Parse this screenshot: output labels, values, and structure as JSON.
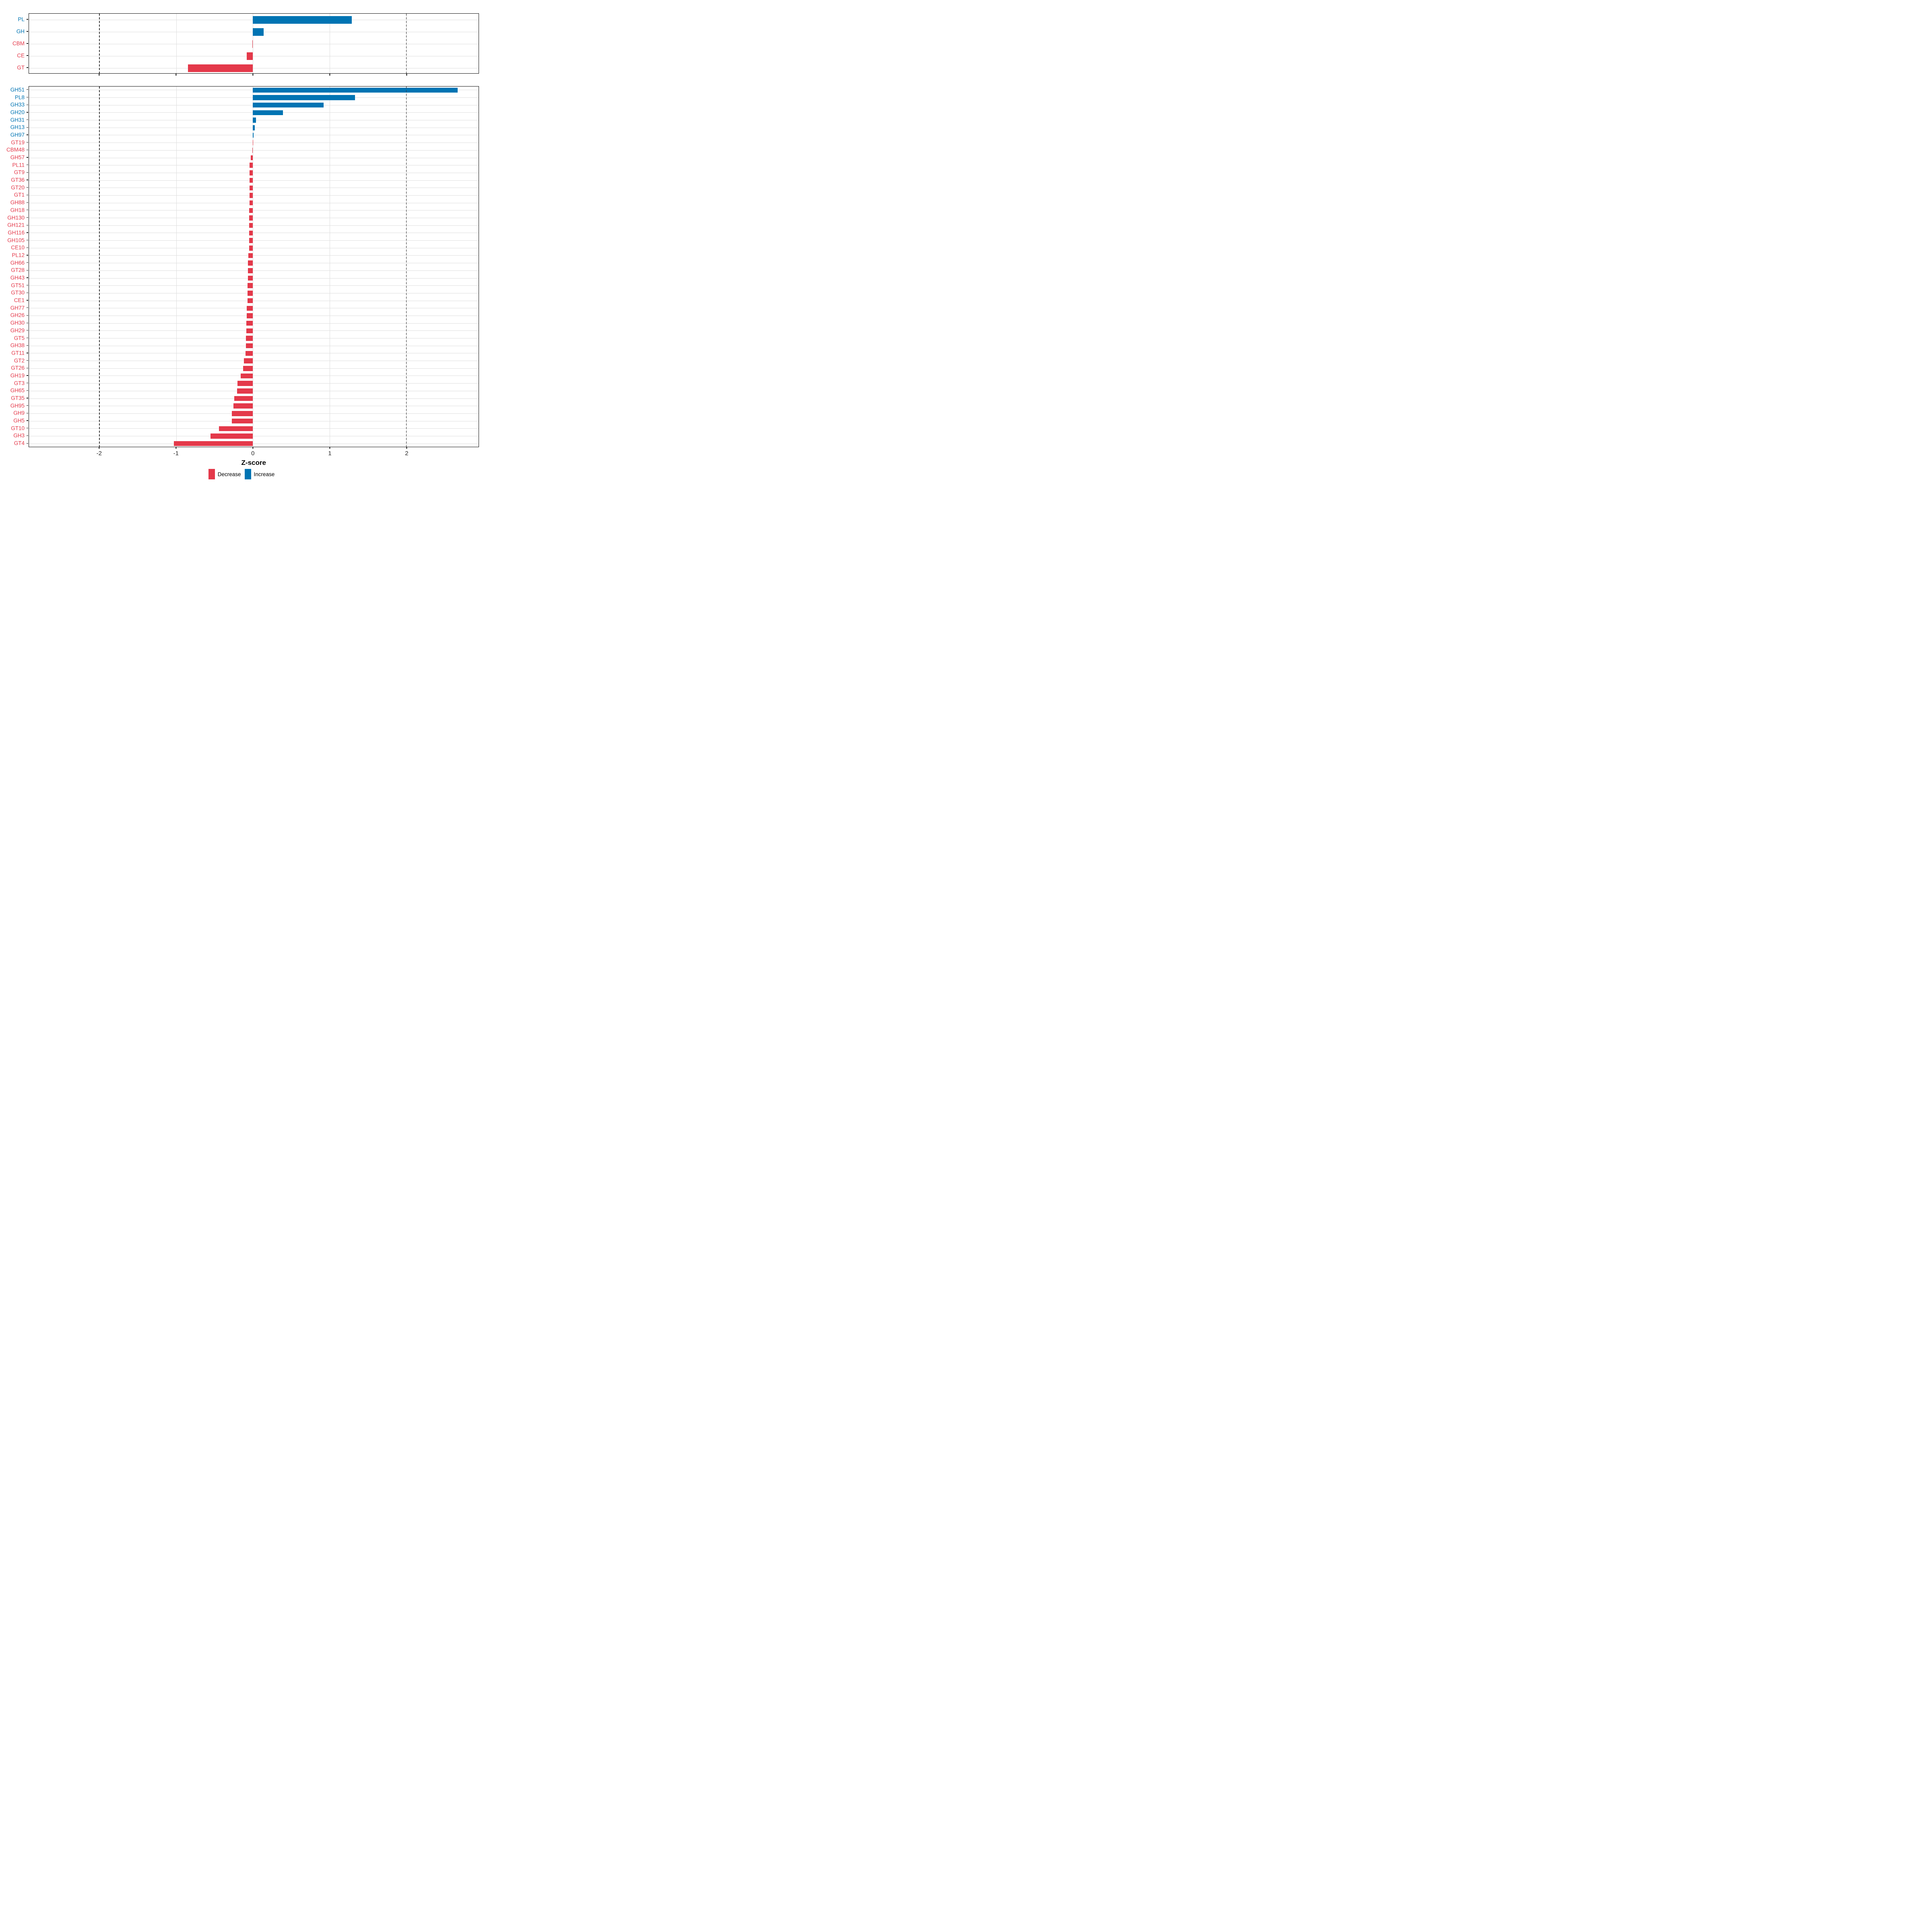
{
  "chart_data": {
    "type": "bar",
    "orientation": "horizontal",
    "xlabel": "Z-score",
    "xlim": [
      -2.92,
      2.94
    ],
    "x_ticks": [
      -2,
      -1,
      0,
      1,
      2
    ],
    "dashed_reference_lines": [
      -2,
      2
    ],
    "gridlines": "major",
    "legend_position": "bottom",
    "colors": {
      "increase": "#0074B3",
      "decrease": "#E4394A"
    },
    "legend": {
      "items": [
        {
          "label": "Decrease",
          "key": "decrease"
        },
        {
          "label": "Increase",
          "key": "increase"
        }
      ]
    },
    "panels": [
      {
        "id": "class-summary",
        "categories": [
          "PL",
          "GH",
          "CBM",
          "CE",
          "GT"
        ],
        "values": [
          1.29,
          0.14,
          -0.008,
          -0.078,
          -0.845
        ]
      },
      {
        "id": "family-detail",
        "categories": [
          "GH51",
          "PL8",
          "GH33",
          "GH20",
          "GH31",
          "GH13",
          "GH97",
          "GT19",
          "CBM48",
          "GH57",
          "PL11",
          "GT9",
          "GT36",
          "GT20",
          "GT1",
          "GH88",
          "GH18",
          "GH130",
          "GH121",
          "GH116",
          "GH105",
          "CE10",
          "PL12",
          "GH66",
          "GT28",
          "GH43",
          "GT51",
          "GT30",
          "CE1",
          "GH77",
          "GH26",
          "GH30",
          "GH29",
          "GT5",
          "GH38",
          "GT11",
          "GT2",
          "GT26",
          "GH19",
          "GT3",
          "GH65",
          "GT35",
          "GH95",
          "GH9",
          "GH5",
          "GT10",
          "GH3",
          "GT4"
        ],
        "values": [
          2.67,
          1.33,
          0.92,
          0.39,
          0.042,
          0.025,
          0.009,
          -0.002,
          -0.007,
          -0.026,
          -0.043,
          -0.044,
          -0.044,
          -0.045,
          -0.046,
          -0.046,
          -0.047,
          -0.048,
          -0.048,
          -0.049,
          -0.05,
          -0.051,
          -0.061,
          -0.063,
          -0.064,
          -0.066,
          -0.068,
          -0.069,
          -0.071,
          -0.079,
          -0.08,
          -0.085,
          -0.088,
          -0.091,
          -0.093,
          -0.095,
          -0.117,
          -0.129,
          -0.157,
          -0.199,
          -0.206,
          -0.241,
          -0.251,
          -0.276,
          -0.277,
          -0.44,
          -0.55,
          -1.03
        ]
      }
    ]
  }
}
